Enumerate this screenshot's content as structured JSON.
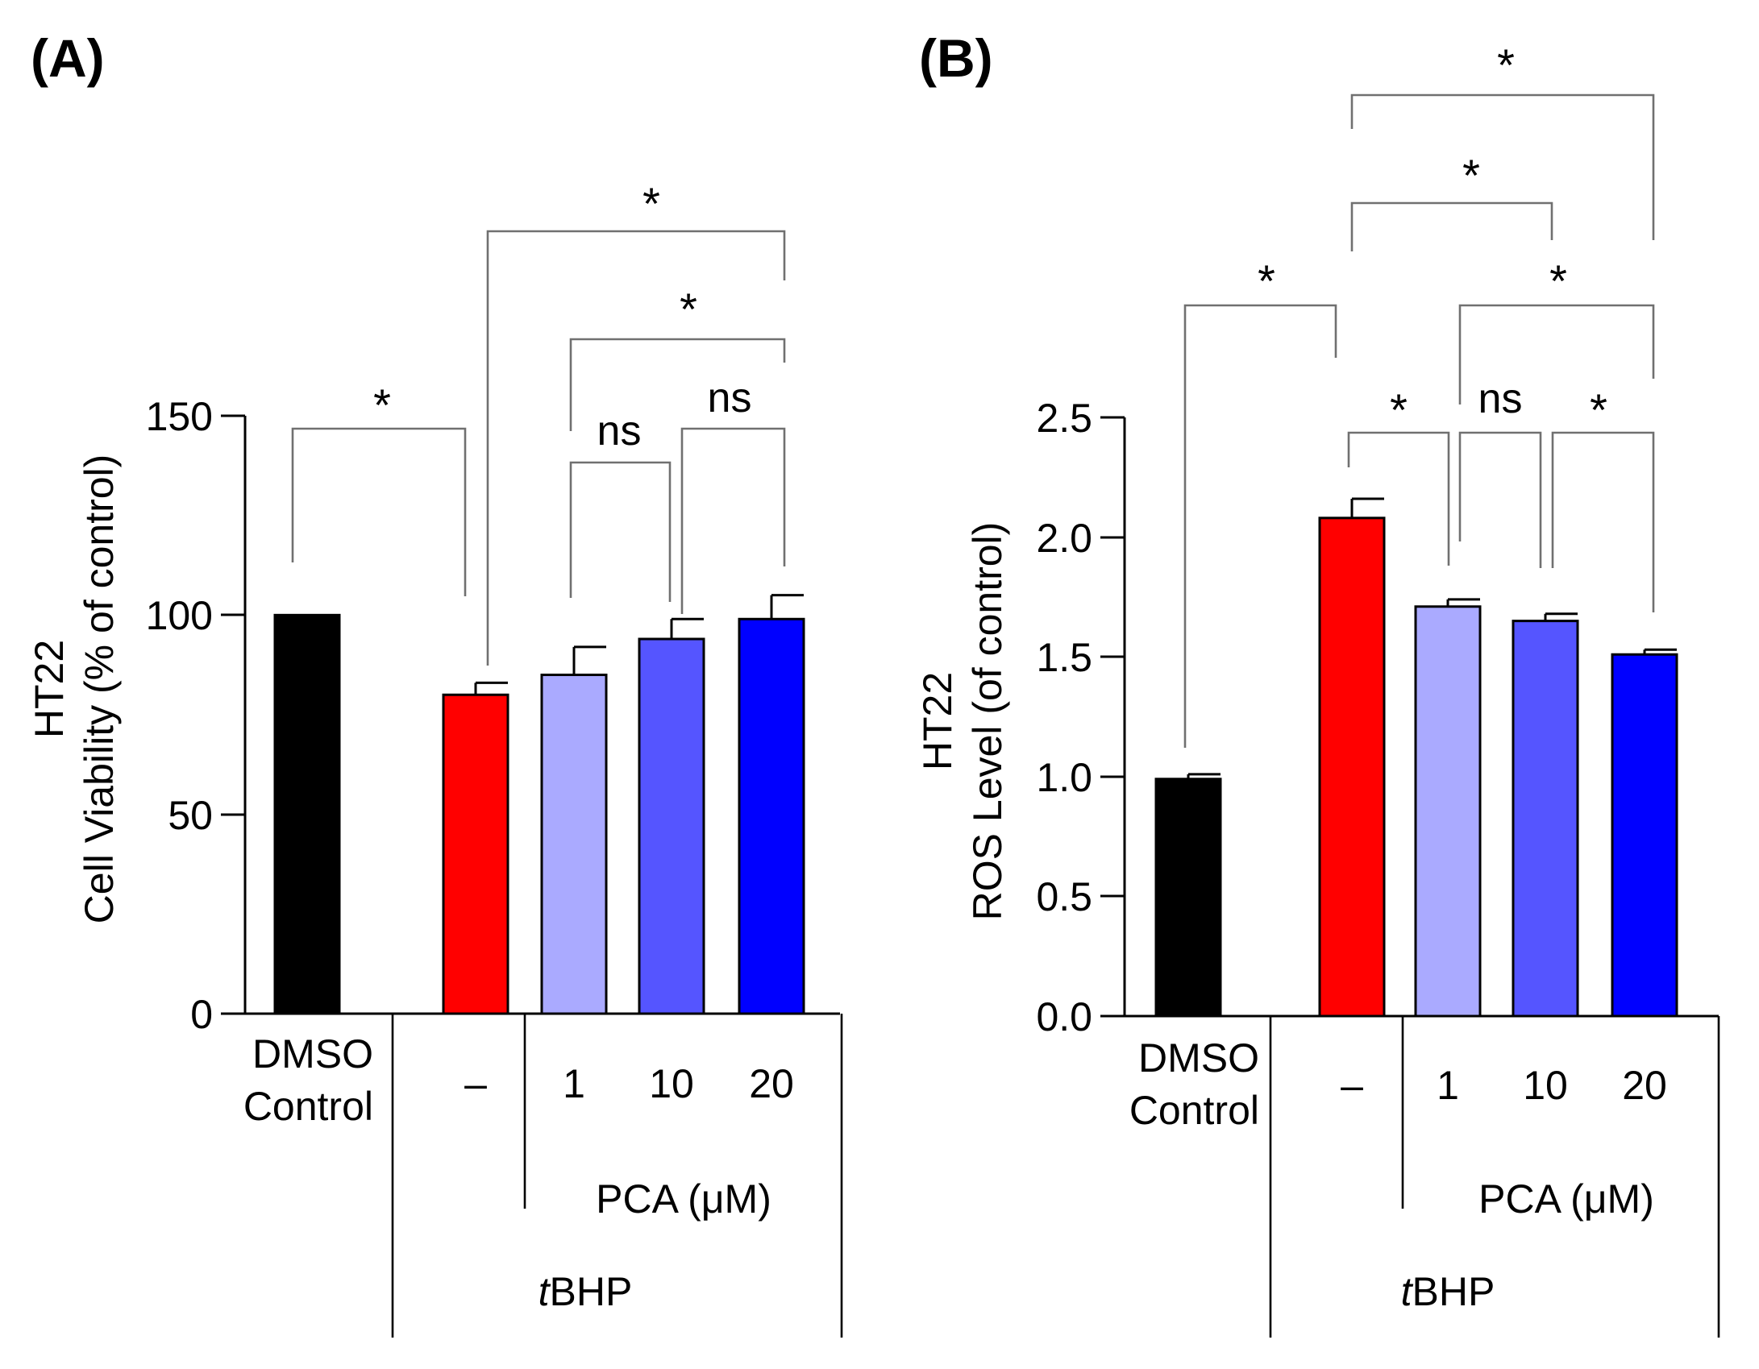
{
  "chart_data": [
    {
      "type": "bar",
      "panel_label": "(A)",
      "ylabel_line1": "HT22",
      "ylabel_line2": "Cell Viability (% of control)",
      "ylim": [
        0,
        150
      ],
      "yticks": [
        "0",
        "50",
        "100",
        "150"
      ],
      "categories": [
        "DMSO Control",
        "–",
        "1",
        "10",
        "20"
      ],
      "values": [
        100,
        80,
        85,
        94,
        99
      ],
      "errors": [
        0,
        3,
        7,
        5,
        6
      ],
      "colors": [
        "#000000",
        "#ff0000",
        "#aaaaff",
        "#5555ff",
        "#0000ff"
      ],
      "group_labels": {
        "pca": "PCA (μM)",
        "tbhp_prefix": "t",
        "tbhp_rest": "BHP"
      },
      "cat_line1": "DMSO",
      "cat_line2": "Control",
      "significance": [
        {
          "from": 0,
          "to": 1,
          "label": "*"
        },
        {
          "from": 2,
          "to": 3,
          "label": "ns"
        },
        {
          "from": 3,
          "to": 4,
          "label": "ns"
        },
        {
          "from": 2,
          "to": 4,
          "label": "*"
        },
        {
          "from": 1,
          "to": 4,
          "label": "*"
        }
      ]
    },
    {
      "type": "bar",
      "panel_label": "(B)",
      "ylabel_line1": "HT22",
      "ylabel_line2": "ROS Level (of control)",
      "ylim": [
        0,
        2.5
      ],
      "yticks": [
        "0.0",
        "0.5",
        "1.0",
        "1.5",
        "2.0",
        "2.5"
      ],
      "categories": [
        "DMSO Control",
        "–",
        "1",
        "10",
        "20"
      ],
      "values": [
        0.99,
        2.08,
        1.71,
        1.65,
        1.51
      ],
      "errors": [
        0.02,
        0.08,
        0.03,
        0.03,
        0.02
      ],
      "colors": [
        "#000000",
        "#ff0000",
        "#aaaaff",
        "#5555ff",
        "#0000ff"
      ],
      "group_labels": {
        "pca": "PCA (μM)",
        "tbhp_prefix": "t",
        "tbhp_rest": "BHP"
      },
      "cat_line1": "DMSO",
      "cat_line2": "Control",
      "significance": [
        {
          "from": 1,
          "to": 2,
          "label": "*"
        },
        {
          "from": 2,
          "to": 3,
          "label": "ns"
        },
        {
          "from": 3,
          "to": 4,
          "label": "*"
        },
        {
          "from": 0,
          "to": 1,
          "label": "*"
        },
        {
          "from": 2,
          "to": 4,
          "label": "*"
        },
        {
          "from": 1,
          "to": 3,
          "label": "*"
        },
        {
          "from": 1,
          "to": 4,
          "label": "*"
        }
      ]
    }
  ]
}
